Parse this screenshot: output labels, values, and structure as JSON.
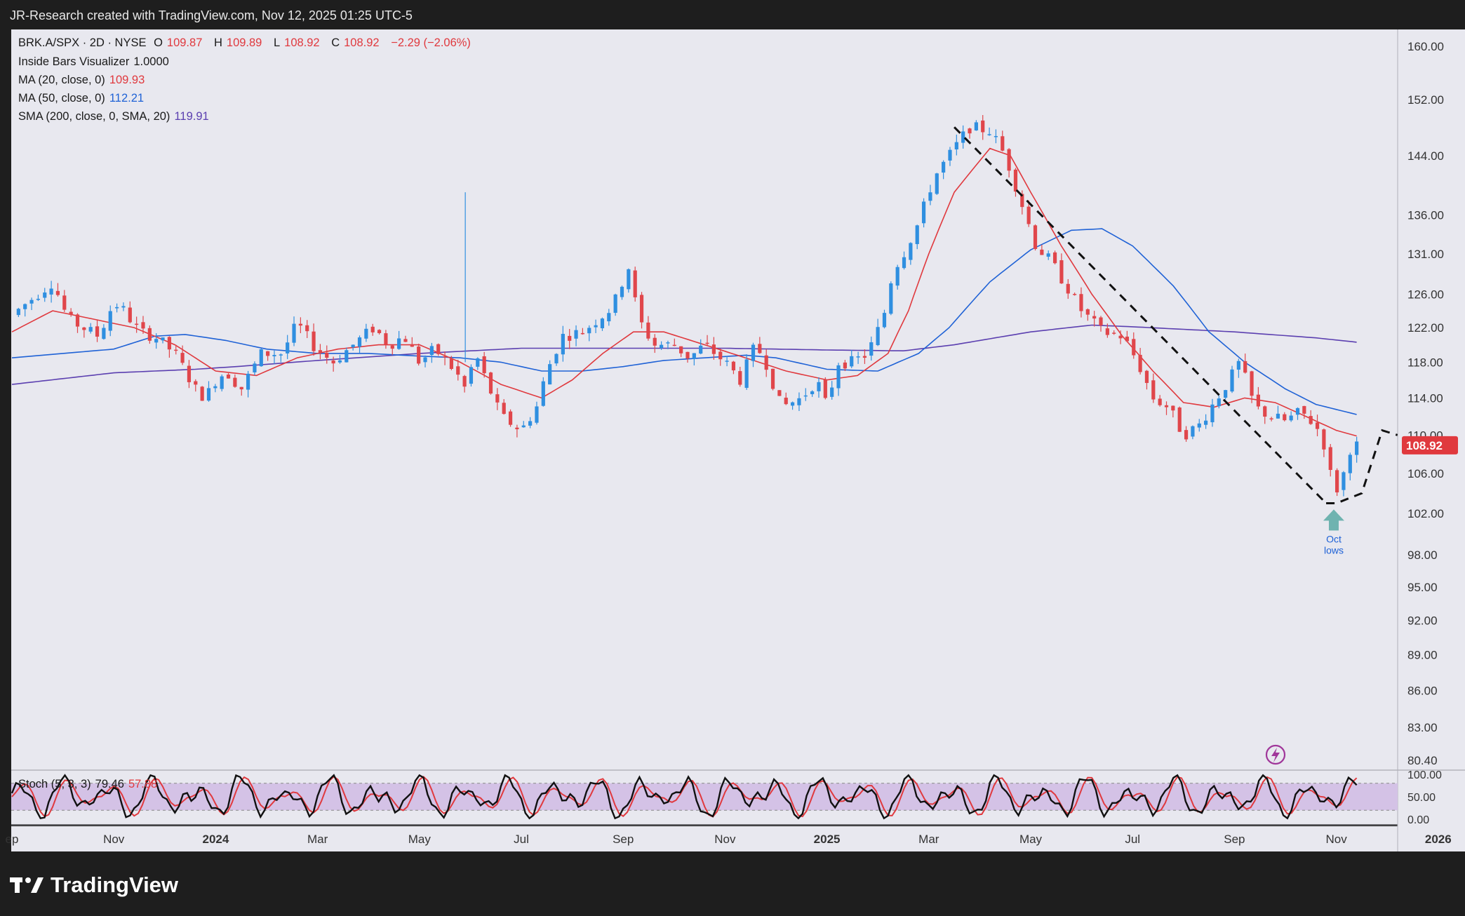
{
  "header": {
    "attribution": "JR-Research created with TradingView.com, Nov 12, 2025 01:25 UTC-5"
  },
  "legend": {
    "symbol": "BRK.A/SPX · 2D · NYSE",
    "ohlc": [
      {
        "k": "O",
        "v": "109.87"
      },
      {
        "k": "H",
        "v": "109.89"
      },
      {
        "k": "L",
        "v": "108.92"
      },
      {
        "k": "C",
        "v": "108.92"
      }
    ],
    "change": "−2.29 (−2.06%)",
    "indicators": [
      {
        "name": "Inside Bars Visualizer",
        "value": "1.0000",
        "color": "#1a1a1a"
      },
      {
        "name": "MA (20, close, 0)",
        "value": "109.93",
        "color": "#e0393e"
      },
      {
        "name": "MA (50, close, 0)",
        "value": "112.21",
        "color": "#1f62d6"
      },
      {
        "name": "SMA (200, close, 0, SMA, 20)",
        "value": "119.91",
        "color": "#5b3fb0"
      }
    ],
    "stoch": {
      "name": "Stoch (5, 3, 3)",
      "k": "79.46",
      "d": "57.88"
    }
  },
  "footer": {
    "brand": "TradingView"
  },
  "chart_data": {
    "type": "candlestick",
    "price_axis": {
      "scale": "log",
      "ticks": [
        "160.00",
        "152.00",
        "144.00",
        "136.00",
        "131.00",
        "126.00",
        "122.00",
        "118.00",
        "114.00",
        "110.00",
        "106.00",
        "102.00",
        "98.00",
        "95.00",
        "92.00",
        "89.00",
        "86.00",
        "83.00",
        "80.40"
      ],
      "last_price": "108.92",
      "last_price_color": "#e0393e"
    },
    "stoch_axis": {
      "ticks": [
        "100.00",
        "50.00",
        "0.00"
      ],
      "band": [
        20,
        80
      ]
    },
    "time_axis": {
      "labels": [
        {
          "t": "ep",
          "x": 0.0
        },
        {
          "t": "Nov",
          "x": 2.0
        },
        {
          "t": "2024",
          "x": 4.0
        },
        {
          "t": "Mar",
          "x": 6.0
        },
        {
          "t": "May",
          "x": 8.0
        },
        {
          "t": "Jul",
          "x": 10.0
        },
        {
          "t": "Sep",
          "x": 12.0
        },
        {
          "t": "Nov",
          "x": 14.0
        },
        {
          "t": "2025",
          "x": 16.0
        },
        {
          "t": "Mar",
          "x": 18.0
        },
        {
          "t": "May",
          "x": 20.0
        },
        {
          "t": "Jul",
          "x": 22.0
        },
        {
          "t": "Sep",
          "x": 24.0
        },
        {
          "t": "Nov",
          "x": 26.0
        },
        {
          "t": "2026",
          "x": 28.0
        }
      ]
    },
    "price_anchors": [
      [
        0.0,
        123.5
      ],
      [
        0.5,
        126
      ],
      [
        0.8,
        127.5
      ],
      [
        1.1,
        123
      ],
      [
        1.4,
        122
      ],
      [
        1.7,
        121
      ],
      [
        2.0,
        125
      ],
      [
        2.2,
        124
      ],
      [
        2.5,
        121.5
      ],
      [
        2.8,
        121
      ],
      [
        3.2,
        119
      ],
      [
        3.6,
        115
      ],
      [
        3.8,
        114
      ],
      [
        4.0,
        116
      ],
      [
        4.2,
        117
      ],
      [
        4.5,
        115
      ],
      [
        4.9,
        119
      ],
      [
        5.3,
        119
      ],
      [
        5.6,
        122.5
      ],
      [
        5.9,
        120
      ],
      [
        6.3,
        118
      ],
      [
        6.7,
        120
      ],
      [
        7.1,
        122
      ],
      [
        7.4,
        120
      ],
      [
        7.7,
        121
      ],
      [
        8.0,
        118
      ],
      [
        8.3,
        119.5
      ],
      [
        8.7,
        117
      ],
      [
        8.9,
        115
      ],
      [
        9.1,
        119
      ],
      [
        9.3,
        116
      ],
      [
        9.6,
        112
      ],
      [
        10.0,
        110.5
      ],
      [
        10.3,
        113
      ],
      [
        10.5,
        117
      ],
      [
        10.8,
        121
      ],
      [
        11.2,
        121.5
      ],
      [
        11.5,
        123
      ],
      [
        11.8,
        124.5
      ],
      [
        12.1,
        129.5
      ],
      [
        12.3,
        123
      ],
      [
        12.6,
        120
      ],
      [
        13.0,
        120
      ],
      [
        13.3,
        118.5
      ],
      [
        13.6,
        120
      ],
      [
        14.0,
        118
      ],
      [
        14.3,
        116
      ],
      [
        14.6,
        120
      ],
      [
        14.8,
        118
      ],
      [
        15.1,
        113
      ],
      [
        15.5,
        114
      ],
      [
        15.8,
        116
      ],
      [
        16.0,
        113
      ],
      [
        16.2,
        118
      ],
      [
        16.5,
        118
      ],
      [
        16.8,
        119
      ],
      [
        17.1,
        123
      ],
      [
        17.3,
        129
      ],
      [
        17.5,
        131
      ],
      [
        17.8,
        135
      ],
      [
        18.1,
        141
      ],
      [
        18.5,
        145
      ],
      [
        18.8,
        148
      ],
      [
        19.2,
        147.5
      ],
      [
        19.5,
        144
      ],
      [
        19.8,
        138
      ],
      [
        20.1,
        132
      ],
      [
        20.4,
        130
      ],
      [
        20.7,
        127
      ],
      [
        21.0,
        124
      ],
      [
        21.4,
        121.5
      ],
      [
        21.8,
        121
      ],
      [
        22.1,
        118
      ],
      [
        22.4,
        114
      ],
      [
        22.7,
        113
      ],
      [
        23.0,
        110
      ],
      [
        23.3,
        111
      ],
      [
        23.6,
        113.5
      ],
      [
        23.9,
        116
      ],
      [
        24.1,
        118
      ],
      [
        24.4,
        113
      ],
      [
        24.7,
        112
      ],
      [
        25.0,
        111.5
      ],
      [
        25.3,
        112.5
      ],
      [
        25.6,
        111
      ],
      [
        25.8,
        108.5
      ],
      [
        25.95,
        104
      ],
      [
        26.1,
        105
      ],
      [
        26.25,
        108.5
      ],
      [
        26.4,
        108.9
      ]
    ],
    "ma20_anchors": [
      [
        0.0,
        121.5
      ],
      [
        0.8,
        124
      ],
      [
        1.6,
        123
      ],
      [
        2.4,
        122
      ],
      [
        3.2,
        120
      ],
      [
        4.0,
        117
      ],
      [
        4.8,
        116.5
      ],
      [
        5.6,
        118.5
      ],
      [
        6.4,
        119.5
      ],
      [
        7.2,
        120
      ],
      [
        8.0,
        120
      ],
      [
        8.8,
        118
      ],
      [
        9.6,
        115.5
      ],
      [
        10.4,
        114
      ],
      [
        11.0,
        116
      ],
      [
        11.6,
        119
      ],
      [
        12.2,
        121.5
      ],
      [
        12.8,
        121.5
      ],
      [
        13.6,
        120
      ],
      [
        14.4,
        118.5
      ],
      [
        15.2,
        117
      ],
      [
        16.0,
        116
      ],
      [
        16.6,
        116.5
      ],
      [
        17.2,
        119
      ],
      [
        17.6,
        124
      ],
      [
        18.0,
        131
      ],
      [
        18.5,
        139
      ],
      [
        19.2,
        145
      ],
      [
        19.6,
        144
      ],
      [
        20.0,
        139
      ],
      [
        20.6,
        132
      ],
      [
        21.2,
        126
      ],
      [
        21.8,
        121
      ],
      [
        22.4,
        117
      ],
      [
        23.0,
        113.5
      ],
      [
        23.6,
        113
      ],
      [
        24.2,
        114
      ],
      [
        24.8,
        113.5
      ],
      [
        25.4,
        112
      ],
      [
        26.0,
        110.5
      ],
      [
        26.4,
        109.9
      ]
    ],
    "ma50_anchors": [
      [
        0.0,
        118.5
      ],
      [
        1.0,
        119
      ],
      [
        2.0,
        119.5
      ],
      [
        2.8,
        121
      ],
      [
        3.4,
        121.2
      ],
      [
        4.2,
        120.5
      ],
      [
        5.0,
        119.5
      ],
      [
        6.0,
        119
      ],
      [
        7.0,
        119
      ],
      [
        8.0,
        118.7
      ],
      [
        8.8,
        118.5
      ],
      [
        9.6,
        118
      ],
      [
        10.4,
        117
      ],
      [
        11.2,
        117
      ],
      [
        12.0,
        117.5
      ],
      [
        12.8,
        118.2
      ],
      [
        13.6,
        118.5
      ],
      [
        14.4,
        118.8
      ],
      [
        15.0,
        118.5
      ],
      [
        16.0,
        117.2
      ],
      [
        17.0,
        117
      ],
      [
        17.8,
        119
      ],
      [
        18.4,
        122
      ],
      [
        19.2,
        127.5
      ],
      [
        20.0,
        131.5
      ],
      [
        20.8,
        134
      ],
      [
        21.4,
        134.2
      ],
      [
        22.0,
        132
      ],
      [
        22.8,
        127
      ],
      [
        23.5,
        121.5
      ],
      [
        24.2,
        118
      ],
      [
        25.0,
        115
      ],
      [
        25.6,
        113.3
      ],
      [
        26.4,
        112.2
      ]
    ],
    "sma200_anchors": [
      [
        0.0,
        115.5
      ],
      [
        2.0,
        116.8
      ],
      [
        3.6,
        117.2
      ],
      [
        4.4,
        117.5
      ],
      [
        6.0,
        118.2
      ],
      [
        8.0,
        119
      ],
      [
        10.0,
        119.6
      ],
      [
        12.0,
        119.6
      ],
      [
        14.0,
        119.6
      ],
      [
        16.0,
        119.4
      ],
      [
        17.5,
        119.3
      ],
      [
        18.5,
        120
      ],
      [
        20.0,
        121.5
      ],
      [
        21.2,
        122.3
      ],
      [
        22.0,
        122.1
      ],
      [
        24.0,
        121.5
      ],
      [
        25.6,
        120.8
      ],
      [
        26.4,
        120.3
      ]
    ],
    "stoch_cycles": "oscillates 0-100 repeatedly; final %K 79.46, %D 57.88",
    "annotations": [
      {
        "type": "dashed-trendline",
        "from": [
          18.5,
          148
        ],
        "to": [
          25.8,
          103
        ]
      },
      {
        "type": "dashed-projection",
        "points": [
          [
            25.8,
            103
          ],
          [
            26.0,
            103
          ],
          [
            26.5,
            104
          ],
          [
            26.9,
            110.5
          ],
          [
            27.2,
            110
          ]
        ]
      },
      {
        "type": "arrow-up",
        "at": [
          25.95,
          103.5
        ],
        "label": "Oct lows",
        "color": "#6fb3b0"
      }
    ]
  }
}
